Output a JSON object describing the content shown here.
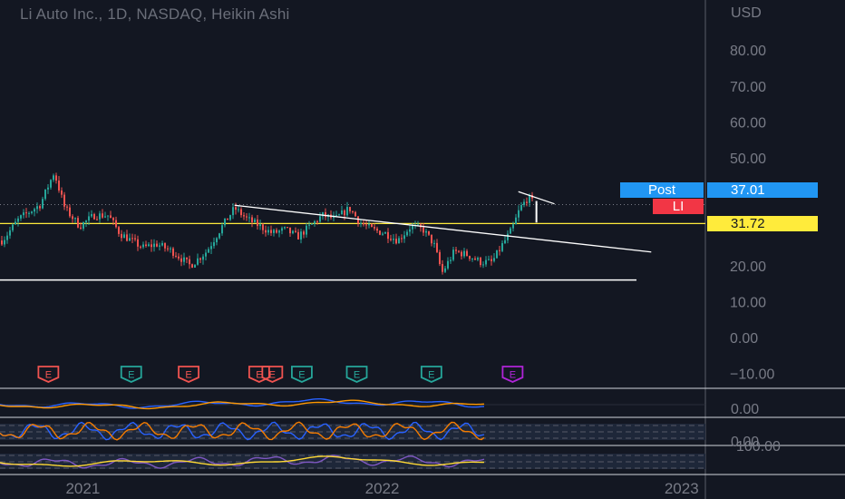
{
  "header": {
    "title": "Li Auto Inc., 1D, NASDAQ, Heikin Ashi"
  },
  "price_axis": {
    "currency": "USD",
    "ticks": [
      "80.00",
      "70.00",
      "60.00",
      "50.00",
      "20.00",
      "10.00",
      "0.00",
      "−10.00"
    ],
    "osc_ticks": [
      "0.00",
      "0.00",
      "100.00"
    ]
  },
  "time_axis": {
    "ticks": [
      "2021",
      "2022",
      "2023"
    ]
  },
  "labels": {
    "post_label": "Post",
    "post_price": "37.01",
    "symbol": "LI",
    "level_price": "31.72"
  },
  "events": {
    "letter": "E",
    "items": [
      {
        "x_date": "2020-11-20",
        "result": "miss"
      },
      {
        "x_date": "2021-03-01",
        "result": "beat"
      },
      {
        "x_date": "2021-05-10",
        "result": "miss"
      },
      {
        "x_date": "2021-08-04",
        "result": "miss"
      },
      {
        "x_date": "2021-08-20",
        "result": "miss"
      },
      {
        "x_date": "2021-09-25",
        "result": "beat"
      },
      {
        "x_date": "2021-12-01",
        "result": "beat"
      },
      {
        "x_date": "2022-03-02",
        "result": "beat"
      },
      {
        "x_date": "2022-06-09",
        "result": "upcoming"
      }
    ]
  },
  "colors": {
    "background": "#131722",
    "up": "#26a69a",
    "down": "#ef5350",
    "level_line": "#ffeb3b",
    "post_badge": "#2196f3",
    "symbol_badge": "#f23645",
    "trendline": "#ffffff",
    "upcoming_event": "#b025d8"
  },
  "chart_data": {
    "type": "candlestick",
    "x_range": [
      "2020-09-22",
      "2023-01-30"
    ],
    "ylim": [
      -10,
      90
    ],
    "y_scale": "linear",
    "grid": false,
    "candles": [
      [
        "2020-09-25",
        27
      ],
      [
        "2020-10-15",
        33
      ],
      [
        "2020-11-10",
        37
      ],
      [
        "2020-11-27",
        46
      ],
      [
        "2020-12-10",
        36
      ],
      [
        "2020-12-28",
        31
      ],
      [
        "2021-01-15",
        34
      ],
      [
        "2021-02-01",
        34
      ],
      [
        "2021-02-15",
        29
      ],
      [
        "2021-03-01",
        27
      ],
      [
        "2021-03-15",
        25
      ],
      [
        "2021-04-01",
        26
      ],
      [
        "2021-04-20",
        24
      ],
      [
        "2021-05-12",
        20
      ],
      [
        "2021-06-01",
        24
      ],
      [
        "2021-06-20",
        31
      ],
      [
        "2021-07-05",
        36
      ],
      [
        "2021-07-20",
        33
      ],
      [
        "2021-08-05",
        31
      ],
      [
        "2021-08-20",
        29
      ],
      [
        "2021-09-05",
        30
      ],
      [
        "2021-09-20",
        28
      ],
      [
        "2021-10-05",
        31
      ],
      [
        "2021-10-20",
        34
      ],
      [
        "2021-11-05",
        33
      ],
      [
        "2021-11-22",
        36
      ],
      [
        "2021-12-05",
        32
      ],
      [
        "2021-12-20",
        30
      ],
      [
        "2022-01-05",
        29
      ],
      [
        "2022-01-20",
        27
      ],
      [
        "2022-02-05",
        31
      ],
      [
        "2022-02-20",
        30
      ],
      [
        "2022-03-05",
        26
      ],
      [
        "2022-03-15",
        18
      ],
      [
        "2022-03-30",
        24
      ],
      [
        "2022-04-15",
        23
      ],
      [
        "2022-05-01",
        21
      ],
      [
        "2022-05-15",
        21
      ],
      [
        "2022-05-28",
        26
      ],
      [
        "2022-06-08",
        30
      ],
      [
        "2022-06-18",
        36
      ],
      [
        "2022-06-28",
        39
      ],
      [
        "2022-07-06",
        37
      ]
    ],
    "horizontal_levels": [
      31.72,
      16.0
    ],
    "trendlines": [
      {
        "from": [
          "2021-07-05",
          36.8
        ],
        "to": [
          "2022-11-25",
          23.8
        ]
      },
      {
        "from": [
          "2022-06-16",
          40.6
        ],
        "to": [
          "2022-07-30",
          37.2
        ]
      }
    ]
  }
}
